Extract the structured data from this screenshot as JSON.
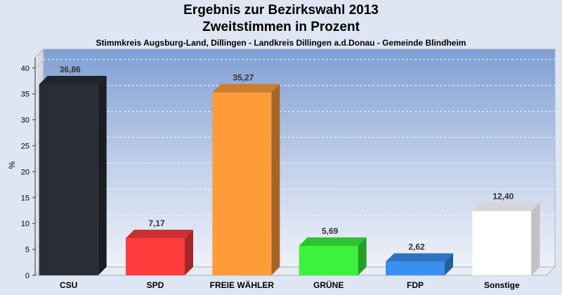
{
  "header": {
    "title_line1": "Ergebnis zur Bezirkswahl 2013",
    "title_line2": "Zweitstimmen in Prozent",
    "subtitle": "Stimmkreis Augsburg-Land, Dillingen - Landkreis Dillingen a.d.Donau - Gemeinde Blindheim"
  },
  "chart_data": {
    "type": "bar",
    "title": "Ergebnis zur Bezirkswahl 2013 Zweitstimmen in Prozent",
    "subtitle": "Stimmkreis Augsburg-Land, Dillingen - Landkreis Dillingen a.d.Donau - Gemeinde Blindheim",
    "xlabel": "",
    "ylabel": "%",
    "ylim": [
      0,
      42
    ],
    "yticks": [
      0,
      5,
      10,
      15,
      20,
      25,
      30,
      35,
      40
    ],
    "grid": true,
    "legend": "none",
    "categories": [
      "CSU",
      "SPD",
      "FREIE WÄHLER",
      "GRÜNE",
      "FDP",
      "Sonstige"
    ],
    "values": [
      36.86,
      7.17,
      35.27,
      5.69,
      2.62,
      12.4
    ],
    "value_labels": [
      "36,86",
      "7,17",
      "35,27",
      "5,69",
      "2,62",
      "12,40"
    ],
    "colors": [
      "#2a2d36",
      "#ff3b3b",
      "#ff9c3a",
      "#3cf23c",
      "#3b8ff0",
      "#ffffff"
    ]
  }
}
